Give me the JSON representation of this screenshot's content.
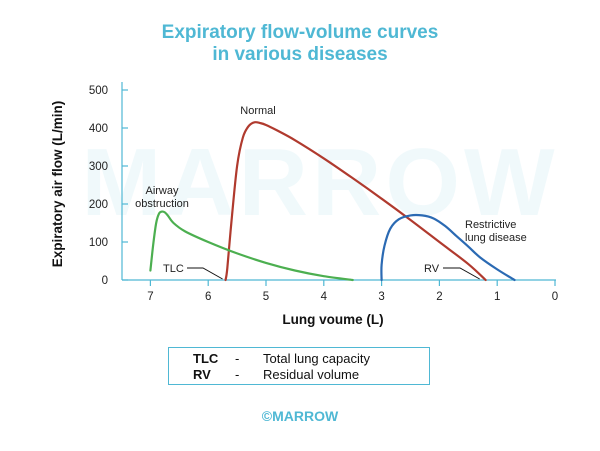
{
  "title": [
    "Expiratory flow-volume curves",
    "in various diseases"
  ],
  "watermark": "MARROW",
  "brand": "©MARROW",
  "colors": {
    "accent": "#4fb8d4",
    "normal": "#b03a2e",
    "obstruction": "#4caf50",
    "restrictive": "#2b6ab3"
  },
  "chart_data": {
    "type": "line",
    "title": "Expiratory flow-volume curves in various diseases",
    "xlabel": "Lung voume (L)",
    "ylabel": "Expiratory air flow (L/min)",
    "xlim": [
      7.6,
      0
    ],
    "ylim": [
      0,
      520
    ],
    "xticks": [
      7,
      6,
      5,
      4,
      3,
      2,
      1,
      0
    ],
    "yticks": [
      0,
      100,
      200,
      300,
      400,
      500
    ],
    "series": [
      {
        "name": "Normal",
        "color": "#b03a2e",
        "x": [
          5.7,
          5.67,
          5.6,
          5.5,
          5.4,
          5.3,
          5.2,
          5.1,
          5.0,
          4.8,
          4.5,
          4.0,
          3.5,
          3.0,
          2.5,
          2.0,
          1.5,
          1.2
        ],
        "y": [
          0,
          30,
          150,
          300,
          375,
          405,
          415,
          413,
          408,
          393,
          368,
          320,
          268,
          214,
          158,
          100,
          42,
          0
        ]
      },
      {
        "name": "Airway obstruction",
        "color": "#4caf50",
        "x": [
          7.0,
          6.95,
          6.9,
          6.85,
          6.8,
          6.75,
          6.7,
          6.6,
          6.4,
          6.0,
          5.5,
          5.0,
          4.5,
          4.0,
          3.5
        ],
        "y": [
          25,
          95,
          150,
          175,
          180,
          178,
          170,
          150,
          128,
          100,
          70,
          45,
          25,
          10,
          0
        ]
      },
      {
        "name": "Restrictive lung disease",
        "color": "#2b6ab3",
        "x": [
          3.0,
          3.0,
          2.95,
          2.85,
          2.7,
          2.5,
          2.3,
          2.1,
          1.9,
          1.7,
          1.5,
          1.3,
          1.0,
          0.7
        ],
        "y": [
          0,
          40,
          90,
          135,
          160,
          170,
          170,
          162,
          142,
          115,
          88,
          60,
          28,
          0
        ]
      }
    ],
    "annotations": [
      {
        "text": "Normal",
        "x": 5.3,
        "y": 440
      },
      {
        "text": "Airway obstruction",
        "x": 6.75,
        "y": 215
      },
      {
        "text": "Restrictive lung disease",
        "x": 1.4,
        "y": 130
      },
      {
        "text": "TLC",
        "x": 5.7,
        "y": 0
      },
      {
        "text": "RV",
        "x": 1.2,
        "y": 0
      }
    ]
  },
  "legend": [
    {
      "abbr": "TLC",
      "dash": "-",
      "text": "Total lung capacity"
    },
    {
      "abbr": "RV",
      "dash": "-",
      "text": "Residual volume"
    }
  ]
}
